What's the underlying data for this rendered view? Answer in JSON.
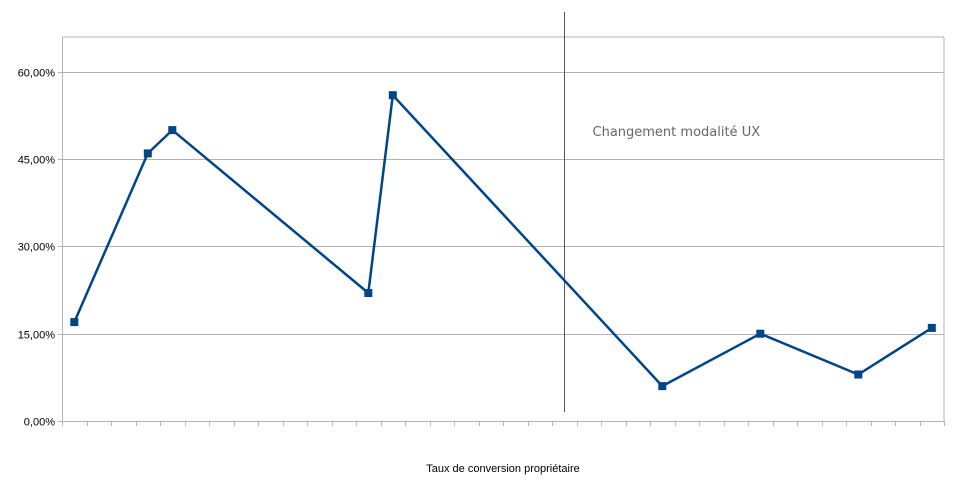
{
  "chart_data": {
    "type": "line",
    "xlabel": "Taux de conversion propriétaire",
    "ylabel": "",
    "ylim": [
      0,
      0.6
    ],
    "y_ticks": [
      "0,00%",
      "15,00%",
      "30,00%",
      "45,00%",
      "60,00%"
    ],
    "grid": "horizontal",
    "x_range": [
      0,
      36
    ],
    "series": [
      {
        "color": "#004586",
        "marker": "square",
        "x": [
          0.5,
          3.5,
          4.5,
          12.5,
          13.5,
          24.5,
          28.5,
          32.5,
          35.5
        ],
        "values": [
          0.17,
          0.46,
          0.5,
          0.22,
          0.56,
          0.06,
          0.15,
          0.08,
          0.16
        ]
      }
    ],
    "annotations": [
      {
        "text": "Changement modalité UX",
        "x": 20.5,
        "type": "vertical-line"
      }
    ],
    "colors": {
      "line": "#004586",
      "grid": "#b3b3b3",
      "axis": "#b3b3b3",
      "marker_line": "#000000"
    }
  }
}
